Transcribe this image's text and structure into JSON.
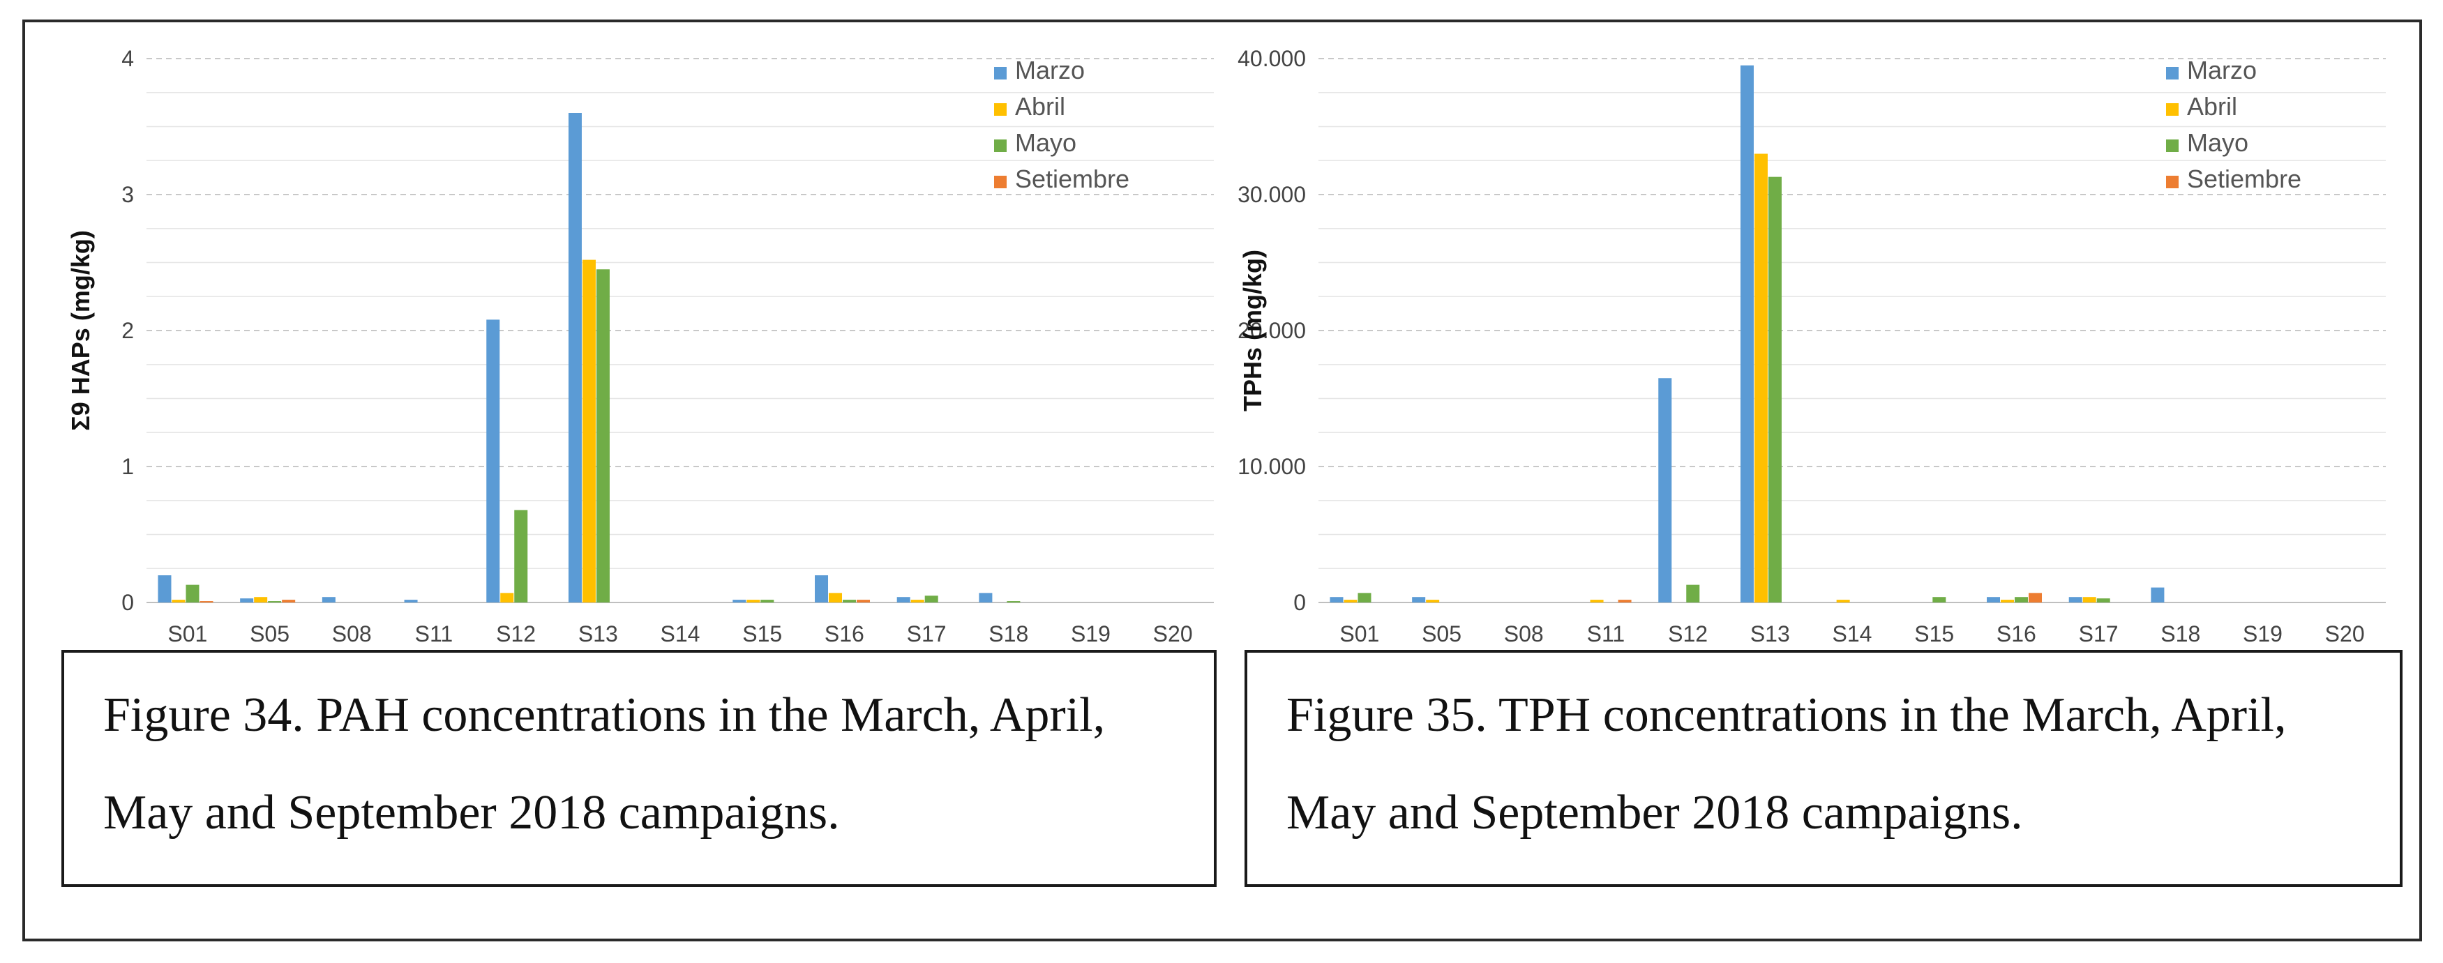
{
  "colors": {
    "marzo": "#5b9bd5",
    "abril": "#ffc000",
    "mayo": "#70ad47",
    "setiembre": "#ed7d31",
    "grid": "#d9d9d9",
    "axis": "#bfbfbf"
  },
  "chart_data": [
    {
      "type": "bar",
      "ylabel": "Σ9 HAPs (mg/kg)",
      "xlabel": "",
      "ylim": [
        0,
        4
      ],
      "yticks": [
        "0",
        "1",
        "2",
        "3",
        "4"
      ],
      "grid": true,
      "legend_position": "top-right",
      "categories": [
        "S01",
        "S05",
        "S08",
        "S11",
        "S12",
        "S13",
        "S14",
        "S15",
        "S16",
        "S17",
        "S18",
        "S19",
        "S20"
      ],
      "series": [
        {
          "name": "Marzo",
          "color": "#5b9bd5",
          "values": [
            0.2,
            0.03,
            0.04,
            0.02,
            2.08,
            3.6,
            0.0,
            0.02,
            0.2,
            0.04,
            0.07,
            0.0,
            0.0
          ]
        },
        {
          "name": "Abril",
          "color": "#ffc000",
          "values": [
            0.02,
            0.04,
            0.0,
            0.0,
            0.07,
            2.52,
            0.0,
            0.02,
            0.07,
            0.02,
            0.0,
            0.0,
            0.0
          ]
        },
        {
          "name": "Mayo",
          "color": "#70ad47",
          "values": [
            0.13,
            0.01,
            0.0,
            0.0,
            0.68,
            2.45,
            0.0,
            0.02,
            0.02,
            0.05,
            0.01,
            0.0,
            0.0
          ]
        },
        {
          "name": "Setiembre",
          "color": "#ed7d31",
          "values": [
            0.01,
            0.02,
            0.0,
            0.0,
            0.0,
            0.0,
            0.0,
            0.0,
            0.02,
            0.0,
            0.0,
            0.0,
            0.0
          ]
        }
      ],
      "caption": "Figure 34. PAH concentrations in the March, April, May and September 2018 campaigns."
    },
    {
      "type": "bar",
      "ylabel": "TPHs (mg/kg)",
      "xlabel": "",
      "ylim": [
        0,
        40000
      ],
      "yticks": [
        "0",
        "10.000",
        "20.000",
        "30.000",
        "40.000"
      ],
      "grid": true,
      "legend_position": "top-right",
      "categories": [
        "S01",
        "S05",
        "S08",
        "S11",
        "S12",
        "S13",
        "S14",
        "S15",
        "S16",
        "S17",
        "S18",
        "S19",
        "S20"
      ],
      "series": [
        {
          "name": "Marzo",
          "color": "#5b9bd5",
          "values": [
            400,
            400,
            0,
            0,
            16500,
            39500,
            0,
            0,
            400,
            400,
            1100,
            0,
            0
          ]
        },
        {
          "name": "Abril",
          "color": "#ffc000",
          "values": [
            200,
            200,
            0,
            200,
            0,
            33000,
            200,
            0,
            200,
            400,
            0,
            0,
            0
          ]
        },
        {
          "name": "Mayo",
          "color": "#70ad47",
          "values": [
            700,
            0,
            0,
            0,
            1300,
            31300,
            0,
            400,
            400,
            300,
            0,
            0,
            0
          ]
        },
        {
          "name": "Setiembre",
          "color": "#ed7d31",
          "values": [
            0,
            0,
            0,
            200,
            0,
            0,
            0,
            0,
            700,
            0,
            0,
            0,
            0
          ]
        }
      ],
      "caption": "Figure 35. TPH concentrations in the March, April, May and September 2018 campaigns."
    }
  ],
  "captions": {
    "left": "Figure 34. PAH concentrations in the March, April, May and September 2018 campaigns.",
    "right": "Figure 35. TPH concentrations in the March, April, May and September 2018 campaigns."
  }
}
